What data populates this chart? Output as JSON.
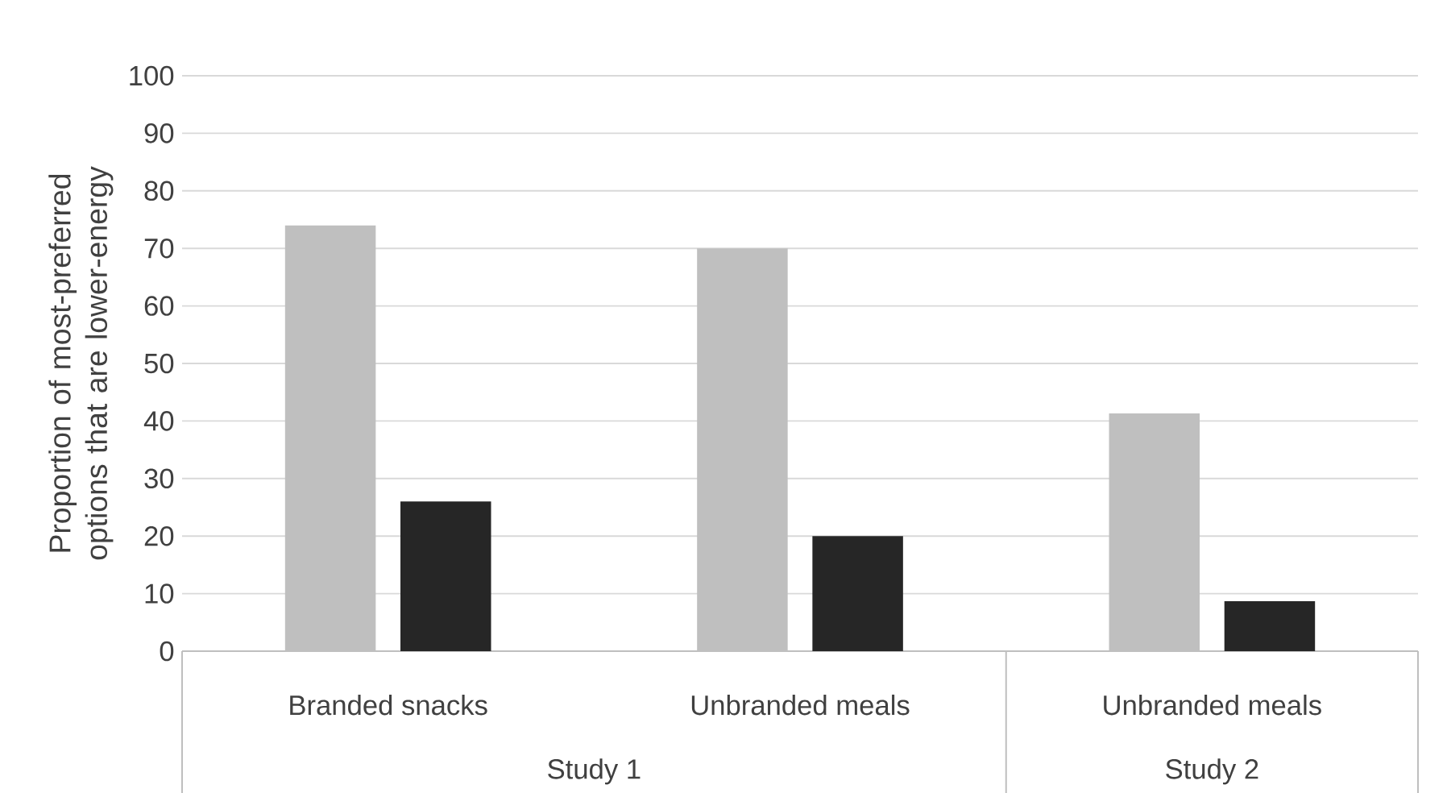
{
  "chart_data": {
    "type": "bar",
    "ylabel": "Proportion of most-preferred options that are lower-energy",
    "categories": [
      "Branded snacks",
      "Unbranded meals",
      "Unbranded meals"
    ],
    "series": [
      {
        "color": "#bfbfbf",
        "values": [
          74,
          70,
          41.3
        ]
      },
      {
        "color": "#262626",
        "values": [
          26,
          20,
          8.7
        ]
      }
    ],
    "ylim": [
      0,
      100
    ],
    "yticks": [
      0,
      10,
      20,
      30,
      40,
      50,
      60,
      70,
      80,
      90,
      100
    ],
    "grid": "y",
    "legend": false,
    "annotations": [
      "Study 1",
      "Study 2"
    ]
  }
}
